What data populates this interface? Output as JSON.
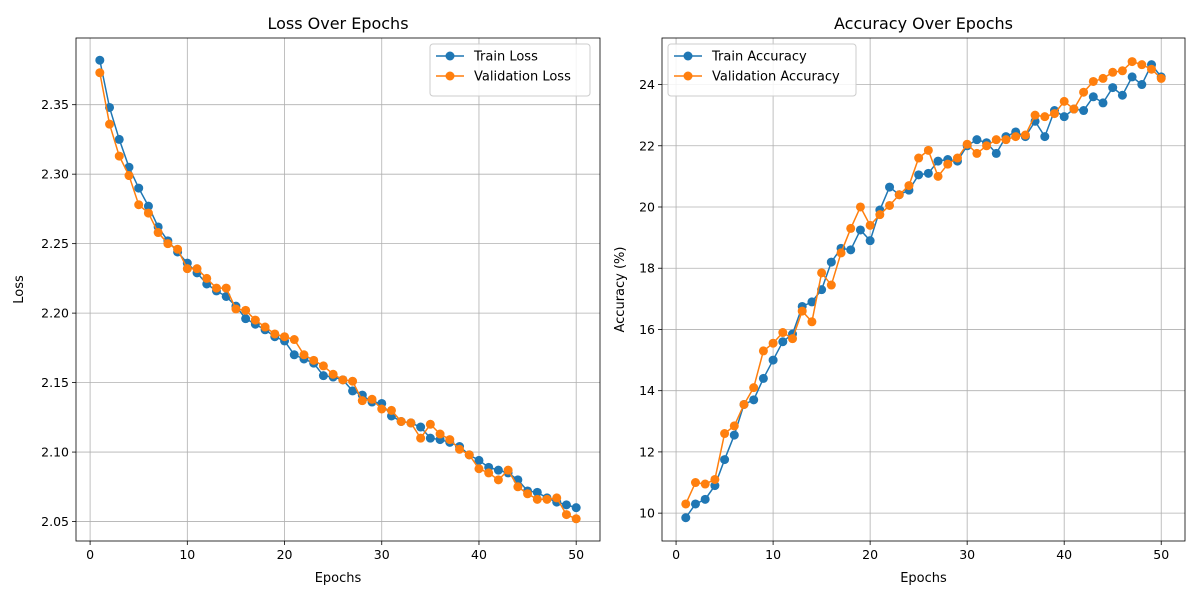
{
  "chart_data": [
    {
      "type": "line",
      "title": "Loss Over Epochs",
      "xlabel": "Epochs",
      "ylabel": "Loss",
      "xlim": [
        -1.45,
        52.45
      ],
      "ylim": [
        2.036,
        2.398
      ],
      "xticks": [
        0,
        10,
        20,
        30,
        40,
        50
      ],
      "xtick_labels": [
        "0",
        "10",
        "20",
        "30",
        "40",
        "50"
      ],
      "yticks": [
        2.05,
        2.1,
        2.15,
        2.2,
        2.25,
        2.3,
        2.35
      ],
      "ytick_labels": [
        "2.05",
        "2.10",
        "2.15",
        "2.20",
        "2.25",
        "2.30",
        "2.35"
      ],
      "grid": true,
      "legend_position": "top-right",
      "x": [
        1,
        2,
        3,
        4,
        5,
        6,
        7,
        8,
        9,
        10,
        11,
        12,
        13,
        14,
        15,
        16,
        17,
        18,
        19,
        20,
        21,
        22,
        23,
        24,
        25,
        26,
        27,
        28,
        29,
        30,
        31,
        32,
        33,
        34,
        35,
        36,
        37,
        38,
        39,
        40,
        41,
        42,
        43,
        44,
        45,
        46,
        47,
        48,
        49,
        50
      ],
      "series": [
        {
          "name": "Train Loss",
          "color": "#1f77b4",
          "values": [
            2.382,
            2.348,
            2.325,
            2.305,
            2.29,
            2.277,
            2.262,
            2.252,
            2.244,
            2.236,
            2.229,
            2.221,
            2.216,
            2.212,
            2.205,
            2.196,
            2.192,
            2.188,
            2.183,
            2.18,
            2.17,
            2.167,
            2.164,
            2.155,
            2.154,
            2.152,
            2.144,
            2.141,
            2.136,
            2.135,
            2.126,
            2.122,
            2.121,
            2.118,
            2.11,
            2.109,
            2.107,
            2.104,
            2.098,
            2.094,
            2.089,
            2.087,
            2.085,
            2.08,
            2.072,
            2.071,
            2.067,
            2.064,
            2.062,
            2.06
          ]
        },
        {
          "name": "Validation Loss",
          "color": "#ff7f0e",
          "values": [
            2.373,
            2.336,
            2.313,
            2.299,
            2.278,
            2.272,
            2.258,
            2.25,
            2.246,
            2.232,
            2.232,
            2.225,
            2.218,
            2.218,
            2.203,
            2.202,
            2.195,
            2.19,
            2.185,
            2.183,
            2.181,
            2.17,
            2.166,
            2.162,
            2.156,
            2.152,
            2.151,
            2.137,
            2.138,
            2.131,
            2.13,
            2.122,
            2.121,
            2.11,
            2.12,
            2.113,
            2.109,
            2.102,
            2.098,
            2.088,
            2.085,
            2.08,
            2.087,
            2.075,
            2.07,
            2.066,
            2.066,
            2.067,
            2.055,
            2.052
          ]
        }
      ]
    },
    {
      "type": "line",
      "title": "Accuracy Over Epochs",
      "xlabel": "Epochs",
      "ylabel": "Accuracy (%)",
      "xlim": [
        -1.45,
        52.45
      ],
      "ylim": [
        9.09,
        25.52
      ],
      "xticks": [
        0,
        10,
        20,
        30,
        40,
        50
      ],
      "xtick_labels": [
        "0",
        "10",
        "20",
        "30",
        "40",
        "50"
      ],
      "yticks": [
        10,
        12,
        14,
        16,
        18,
        20,
        22,
        24
      ],
      "ytick_labels": [
        "10",
        "12",
        "14",
        "16",
        "18",
        "20",
        "22",
        "24"
      ],
      "grid": true,
      "legend_position": "top-left",
      "x": [
        1,
        2,
        3,
        4,
        5,
        6,
        7,
        8,
        9,
        10,
        11,
        12,
        13,
        14,
        15,
        16,
        17,
        18,
        19,
        20,
        21,
        22,
        23,
        24,
        25,
        26,
        27,
        28,
        29,
        30,
        31,
        32,
        33,
        34,
        35,
        36,
        37,
        38,
        39,
        40,
        41,
        42,
        43,
        44,
        45,
        46,
        47,
        48,
        49,
        50
      ],
      "series": [
        {
          "name": "Train Accuracy",
          "color": "#1f77b4",
          "values": [
            9.85,
            10.3,
            10.45,
            10.9,
            11.75,
            12.55,
            13.55,
            13.7,
            14.4,
            15.0,
            15.6,
            15.85,
            16.75,
            16.9,
            17.3,
            18.2,
            18.65,
            18.6,
            19.25,
            18.9,
            19.9,
            20.65,
            20.4,
            20.55,
            21.05,
            21.1,
            21.5,
            21.55,
            21.5,
            22.0,
            22.2,
            22.1,
            21.75,
            22.3,
            22.45,
            22.3,
            22.8,
            22.3,
            23.15,
            22.95,
            23.2,
            23.15,
            23.6,
            23.4,
            23.9,
            23.65,
            24.25,
            24.0,
            24.65,
            24.25
          ]
        },
        {
          "name": "Validation Accuracy",
          "color": "#ff7f0e",
          "values": [
            10.3,
            11.0,
            10.95,
            11.1,
            12.6,
            12.85,
            13.55,
            14.1,
            15.3,
            15.55,
            15.9,
            15.7,
            16.6,
            16.25,
            17.85,
            17.45,
            18.5,
            19.3,
            20.0,
            19.4,
            19.75,
            20.05,
            20.4,
            20.7,
            21.6,
            21.85,
            21.0,
            21.4,
            21.6,
            22.05,
            21.75,
            22.0,
            22.2,
            22.2,
            22.3,
            22.35,
            23.0,
            22.95,
            23.05,
            23.45,
            23.2,
            23.75,
            24.1,
            24.2,
            24.4,
            24.45,
            24.75,
            24.65,
            24.5,
            24.2
          ]
        }
      ]
    }
  ]
}
